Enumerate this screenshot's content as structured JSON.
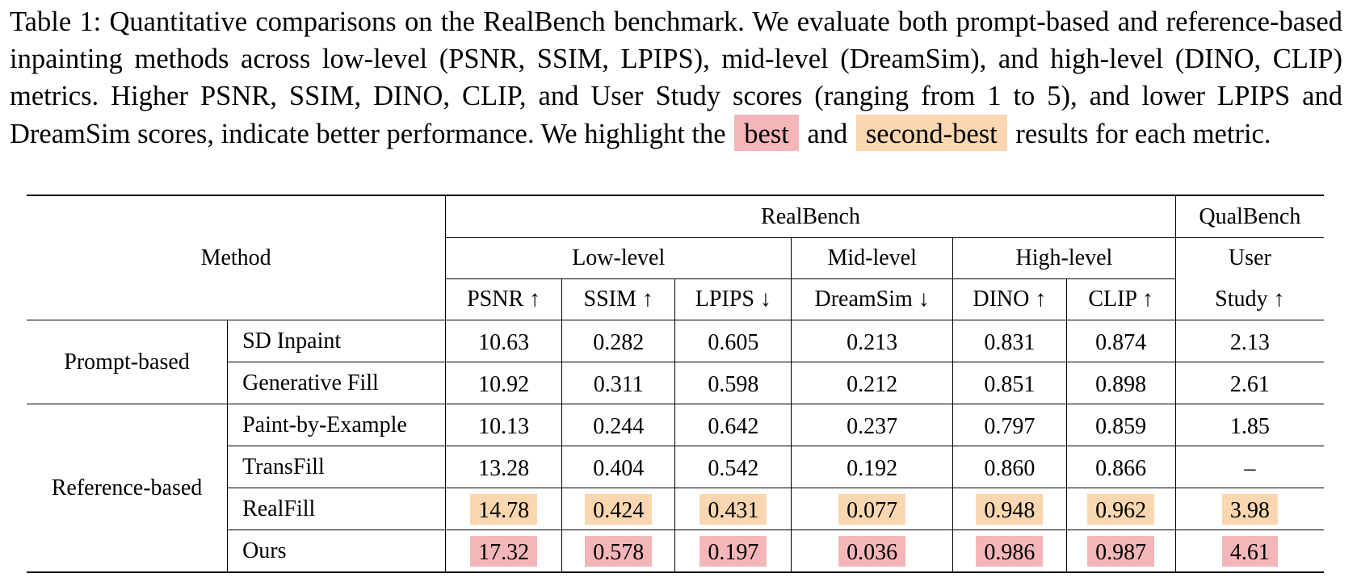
{
  "caption": {
    "part1": "Table 1: Quantitative comparisons on the RealBench benchmark. We evaluate both prompt-based and reference-based inpainting methods across low-level (PSNR, SSIM, LPIPS), mid-level (DreamSim), and high-level (DINO, CLIP) metrics. Higher PSNR, SSIM, DINO, CLIP, and User Study scores (ranging from 1 to 5), and lower LPIPS and DreamSim scores, indicate better performance. We highlight the",
    "best": "best",
    "and": "and",
    "second_best": "second-best",
    "part2": "results for each metric."
  },
  "colors": {
    "best": "#f4b6b8",
    "second_best": "#fad7b0"
  },
  "header": {
    "method": "Method",
    "realbench": "RealBench",
    "qualbench": "QualBench",
    "low_level": "Low-level",
    "mid_level": "Mid-level",
    "high_level": "High-level",
    "user": "User",
    "metrics": [
      "PSNR ↑",
      "SSIM ↑",
      "LPIPS ↓",
      "DreamSim ↓",
      "DINO ↑",
      "CLIP ↑",
      "Study ↑"
    ]
  },
  "groups": [
    {
      "label": "Prompt-based",
      "rows": [
        {
          "method": "SD Inpaint",
          "values": [
            "10.63",
            "0.282",
            "0.605",
            "0.213",
            "0.831",
            "0.874",
            "2.13"
          ],
          "rank": [
            "",
            "",
            "",
            "",
            "",
            "",
            ""
          ]
        },
        {
          "method": "Generative Fill",
          "values": [
            "10.92",
            "0.311",
            "0.598",
            "0.212",
            "0.851",
            "0.898",
            "2.61"
          ],
          "rank": [
            "",
            "",
            "",
            "",
            "",
            "",
            ""
          ]
        }
      ]
    },
    {
      "label": "Reference-based",
      "rows": [
        {
          "method": "Paint-by-Example",
          "values": [
            "10.13",
            "0.244",
            "0.642",
            "0.237",
            "0.797",
            "0.859",
            "1.85"
          ],
          "rank": [
            "",
            "",
            "",
            "",
            "",
            "",
            ""
          ]
        },
        {
          "method": "TransFill",
          "values": [
            "13.28",
            "0.404",
            "0.542",
            "0.192",
            "0.860",
            "0.866",
            "–"
          ],
          "rank": [
            "",
            "",
            "",
            "",
            "",
            "",
            ""
          ]
        },
        {
          "method": "RealFill",
          "values": [
            "14.78",
            "0.424",
            "0.431",
            "0.077",
            "0.948",
            "0.962",
            "3.98"
          ],
          "rank": [
            "second",
            "second",
            "second",
            "second",
            "second",
            "second",
            "second"
          ]
        },
        {
          "method": "Ours",
          "values": [
            "17.32",
            "0.578",
            "0.197",
            "0.036",
            "0.986",
            "0.987",
            "4.61"
          ],
          "rank": [
            "best",
            "best",
            "best",
            "best",
            "best",
            "best",
            "best"
          ]
        }
      ]
    }
  ]
}
